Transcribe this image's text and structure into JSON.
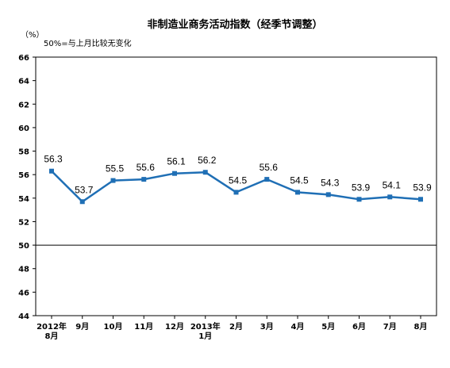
{
  "chart_data": {
    "type": "line",
    "title": "非制造业商务活动指数（经季节调整）",
    "unit_label": "（%）",
    "note": "50%=与上月比较无变化",
    "ylim": [
      44,
      66
    ],
    "yticks": [
      44,
      46,
      48,
      50,
      52,
      54,
      56,
      58,
      60,
      62,
      64,
      66
    ],
    "reference_line": 50,
    "categories": [
      [
        "2012年",
        "8月"
      ],
      [
        "9月"
      ],
      [
        "10月"
      ],
      [
        "11月"
      ],
      [
        "12月"
      ],
      [
        "2013年",
        "1月"
      ],
      [
        "2月"
      ],
      [
        "3月"
      ],
      [
        "4月"
      ],
      [
        "5月"
      ],
      [
        "6月"
      ],
      [
        "7月"
      ],
      [
        "8月"
      ]
    ],
    "values": [
      56.3,
      53.7,
      55.5,
      55.6,
      56.1,
      56.2,
      54.5,
      55.6,
      54.5,
      54.3,
      53.9,
      54.1,
      53.9
    ],
    "data_labels": [
      "56.3",
      "53.7",
      "55.5",
      "55.6",
      "56.1",
      "56.2",
      "54.5",
      "55.6",
      "54.5",
      "54.3",
      "53.9",
      "54.1",
      "53.9"
    ],
    "line_color": "#1f6fb5",
    "grid": false,
    "legend": false
  }
}
